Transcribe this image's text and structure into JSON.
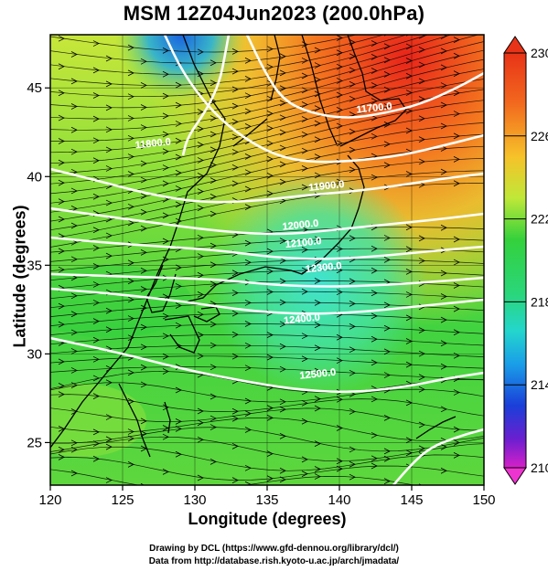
{
  "title": "MSM 12Z04Jun2023 (200.0hPa)",
  "xlabel": "Longitude (degrees)",
  "ylabel": "Latitude  (degrees)",
  "credits": [
    "Drawing by DCL (https://www.gfd-dennou.org/library/dcl/)",
    "Data from http://database.rish.kyoto-u.ac.jp/arch/jmadata/"
  ],
  "map": {
    "x_ticks": [
      {
        "label": "120",
        "value": 120
      },
      {
        "label": "125",
        "value": 125
      },
      {
        "label": "130",
        "value": 130
      },
      {
        "label": "135",
        "value": 135
      },
      {
        "label": "140",
        "value": 140
      },
      {
        "label": "145",
        "value": 145
      },
      {
        "label": "150",
        "value": 150
      }
    ],
    "y_ticks": [
      {
        "label": "25",
        "value": 25
      },
      {
        "label": "30",
        "value": 30
      },
      {
        "label": "35",
        "value": 35
      },
      {
        "label": "40",
        "value": 40
      },
      {
        "label": "45",
        "value": 45
      }
    ],
    "lon_range": [
      120,
      150
    ],
    "lat_range": [
      22.6,
      48
    ],
    "contours": [
      {
        "label": "11700.0",
        "label_lon": 142.4,
        "label_lat": 43.9
      },
      {
        "label": "11800.0",
        "label_lon": 127.1,
        "label_lat": 41.9
      },
      {
        "label": "11900.0",
        "label_lon": 139.1,
        "label_lat": 39.5
      },
      {
        "label": "12000.0",
        "label_lon": 137.3,
        "label_lat": 37.3
      },
      {
        "label": "12100.0",
        "label_lon": 137.5,
        "label_lat": 36.3
      },
      {
        "label": "12300.0",
        "label_lon": 138.9,
        "label_lat": 34.9
      },
      {
        "label": "12400.0",
        "label_lon": 137.4,
        "label_lat": 32.0
      },
      {
        "label": "12500.0",
        "label_lon": 138.5,
        "label_lat": 28.9
      }
    ],
    "colors": {
      "warm": "#e83a1c",
      "mid": "#2fcf3a",
      "cool": "#22d6c0",
      "contour": "#ffffff"
    }
  },
  "colorbar": {
    "labels": [
      {
        "label": "230",
        "value": 230
      },
      {
        "label": "226",
        "value": 226
      },
      {
        "label": "222",
        "value": 222
      },
      {
        "label": "218",
        "value": 218
      },
      {
        "label": "214",
        "value": 214
      },
      {
        "label": "210",
        "value": 210
      }
    ],
    "range": [
      210,
      230
    ]
  }
}
